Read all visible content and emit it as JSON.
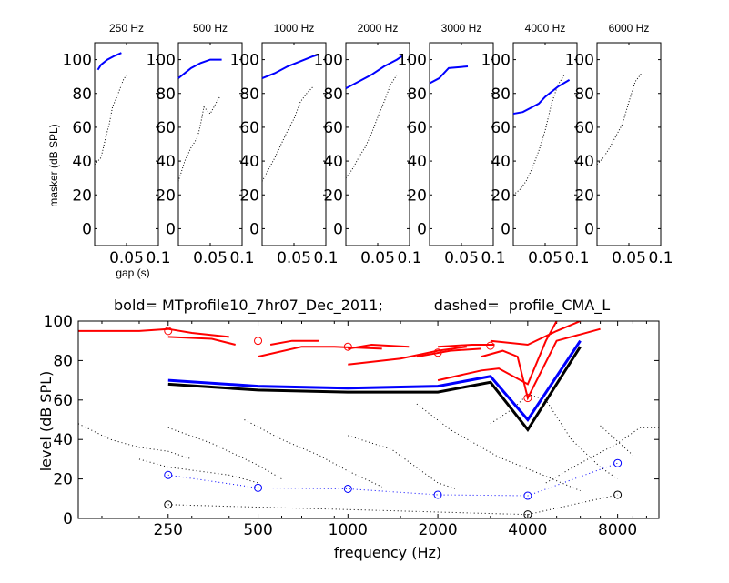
{
  "chart_data": [
    {
      "type": "line",
      "panels": [
        {
          "title": "250 Hz",
          "solid": [
            [
              0.005,
              94
            ],
            [
              0.01,
              97
            ],
            [
              0.02,
              100
            ],
            [
              0.03,
              102
            ],
            [
              0.042,
              104
            ]
          ],
          "dotted": [
            [
              0.0,
              38
            ],
            [
              0.01,
              42
            ],
            [
              0.018,
              55
            ],
            [
              0.023,
              62
            ],
            [
              0.028,
              72
            ],
            [
              0.035,
              78
            ],
            [
              0.045,
              88
            ],
            [
              0.05,
              91
            ]
          ]
        },
        {
          "title": "500 Hz",
          "solid": [
            [
              0.0,
              89
            ],
            [
              0.01,
              92
            ],
            [
              0.02,
              95
            ],
            [
              0.035,
              98
            ],
            [
              0.05,
              100
            ],
            [
              0.068,
              100
            ]
          ],
          "dotted": [
            [
              0.0,
              28
            ],
            [
              0.01,
              40
            ],
            [
              0.02,
              48
            ],
            [
              0.03,
              54
            ],
            [
              0.035,
              62
            ],
            [
              0.04,
              72
            ],
            [
              0.05,
              68
            ],
            [
              0.06,
              75
            ],
            [
              0.065,
              78
            ]
          ]
        },
        {
          "title": "1000 Hz",
          "solid": [
            [
              0.0,
              89
            ],
            [
              0.02,
              92
            ],
            [
              0.04,
              96
            ],
            [
              0.06,
              99
            ],
            [
              0.08,
              102
            ],
            [
              0.088,
              103
            ]
          ],
          "dotted": [
            [
              0.0,
              28
            ],
            [
              0.01,
              35
            ],
            [
              0.02,
              42
            ],
            [
              0.03,
              50
            ],
            [
              0.04,
              58
            ],
            [
              0.05,
              65
            ],
            [
              0.06,
              75
            ],
            [
              0.07,
              80
            ],
            [
              0.08,
              84
            ]
          ]
        },
        {
          "title": "2000 Hz",
          "solid": [
            [
              0.0,
              83
            ],
            [
              0.02,
              87
            ],
            [
              0.04,
              91
            ],
            [
              0.06,
              96
            ],
            [
              0.08,
              100
            ],
            [
              0.088,
              102
            ]
          ],
          "dotted": [
            [
              0.0,
              30
            ],
            [
              0.01,
              35
            ],
            [
              0.02,
              42
            ],
            [
              0.03,
              48
            ],
            [
              0.04,
              56
            ],
            [
              0.05,
              66
            ],
            [
              0.06,
              75
            ],
            [
              0.07,
              85
            ],
            [
              0.08,
              91
            ]
          ]
        },
        {
          "title": "3000 Hz",
          "solid": [
            [
              0.0,
              86
            ],
            [
              0.015,
              89
            ],
            [
              0.03,
              95
            ],
            [
              0.06,
              96
            ]
          ],
          "dotted": []
        },
        {
          "title": "4000 Hz",
          "solid": [
            [
              0.0,
              68
            ],
            [
              0.015,
              69
            ],
            [
              0.03,
              72
            ],
            [
              0.04,
              74
            ],
            [
              0.05,
              78
            ],
            [
              0.07,
              84
            ],
            [
              0.088,
              88
            ]
          ],
          "dotted": [
            [
              0.0,
              20
            ],
            [
              0.01,
              23
            ],
            [
              0.02,
              28
            ],
            [
              0.03,
              36
            ],
            [
              0.04,
              46
            ],
            [
              0.05,
              58
            ],
            [
              0.06,
              74
            ],
            [
              0.07,
              85
            ],
            [
              0.08,
              91
            ]
          ]
        },
        {
          "title": "6000 Hz",
          "solid": [],
          "dotted": [
            [
              0.0,
              38
            ],
            [
              0.01,
              42
            ],
            [
              0.02,
              48
            ],
            [
              0.03,
              55
            ],
            [
              0.04,
              62
            ],
            [
              0.05,
              75
            ],
            [
              0.06,
              87
            ],
            [
              0.07,
              92
            ]
          ]
        }
      ],
      "xlabel": "gap (s)",
      "ylabel": "masker (dB SPL)",
      "xlim": [
        0,
        0.1
      ],
      "ylim": [
        -10,
        110
      ],
      "xticks": [
        "0.05",
        "0.1"
      ],
      "yticks": [
        "0",
        "20",
        "40",
        "60",
        "80",
        "100"
      ]
    },
    {
      "type": "line",
      "title": "bold= MTprofile10_7hr07_Dec_2011;           dashed=  profile_CMA_L",
      "xlabel": "frequency (Hz)",
      "ylabel": "level (dB SPL)",
      "xscale": "log",
      "xlim": [
        125,
        11000
      ],
      "ylim": [
        0,
        100
      ],
      "xticks": [
        "250",
        "500",
        "1000",
        "2000",
        "4000",
        "8000"
      ],
      "yticks": [
        "0",
        "20",
        "40",
        "60",
        "80",
        "100"
      ],
      "series": [
        {
          "style": "bold-blue",
          "color": "#0000ff",
          "points": [
            [
              250,
              70
            ],
            [
              500,
              67
            ],
            [
              1000,
              66
            ],
            [
              2000,
              67
            ],
            [
              3000,
              72
            ],
            [
              4000,
              50
            ],
            [
              6000,
              90
            ]
          ]
        },
        {
          "style": "bold-black",
          "color": "#000000",
          "points": [
            [
              250,
              68
            ],
            [
              500,
              65
            ],
            [
              1000,
              64
            ],
            [
              2000,
              64
            ],
            [
              3000,
              69
            ],
            [
              4000,
              45
            ],
            [
              6000,
              87
            ]
          ]
        },
        {
          "style": "blue-dotted-circles",
          "color": "#0000ff",
          "points": [
            [
              250,
              22
            ],
            [
              500,
              15.5
            ],
            [
              1000,
              15
            ],
            [
              2000,
              12
            ],
            [
              4000,
              11.5
            ],
            [
              8000,
              28
            ]
          ]
        },
        {
          "style": "black-dotted-circles",
          "color": "#000000",
          "points": [
            [
              250,
              7
            ],
            [
              4000,
              2
            ],
            [
              8000,
              12
            ]
          ]
        },
        {
          "style": "red-circles",
          "color": "#ff0000",
          "points": [
            [
              250,
              95
            ],
            [
              500,
              90
            ],
            [
              1000,
              87
            ],
            [
              2000,
              84
            ],
            [
              3000,
              87.5
            ],
            [
              4000,
              61
            ]
          ]
        }
      ],
      "red_segments": [
        [
          [
            100,
            95
          ],
          [
            200,
            95
          ],
          [
            250,
            96
          ],
          [
            300,
            94
          ],
          [
            400,
            92
          ]
        ],
        [
          [
            250,
            92
          ],
          [
            350,
            91
          ],
          [
            420,
            88
          ]
        ],
        [
          [
            500,
            82
          ],
          [
            700,
            87
          ],
          [
            900,
            87
          ],
          [
            1300,
            86
          ]
        ],
        [
          [
            550,
            88
          ],
          [
            650,
            90
          ],
          [
            800,
            90
          ]
        ],
        [
          [
            1000,
            86
          ],
          [
            1200,
            88
          ],
          [
            1600,
            87
          ]
        ],
        [
          [
            1000,
            78
          ],
          [
            1500,
            81
          ],
          [
            2000,
            85
          ],
          [
            2500,
            87
          ]
        ],
        [
          [
            2000,
            87
          ],
          [
            2600,
            88
          ],
          [
            3100,
            88
          ]
        ],
        [
          [
            1700,
            82
          ],
          [
            2200,
            85
          ],
          [
            2800,
            86
          ]
        ],
        [
          [
            2000,
            70
          ],
          [
            2800,
            75
          ],
          [
            3200,
            76
          ],
          [
            4000,
            68
          ],
          [
            4600,
            90
          ],
          [
            5000,
            100
          ]
        ],
        [
          [
            3000,
            90
          ],
          [
            4000,
            88
          ],
          [
            5000,
            95
          ],
          [
            6000,
            100
          ]
        ],
        [
          [
            2800,
            82
          ],
          [
            3300,
            85
          ],
          [
            3700,
            82
          ],
          [
            4000,
            61
          ],
          [
            5000,
            90
          ],
          [
            7000,
            96
          ]
        ]
      ],
      "dotted_segments": [
        [
          [
            125,
            48
          ],
          [
            160,
            40
          ],
          [
            200,
            36
          ],
          [
            250,
            34
          ],
          [
            300,
            30
          ]
        ],
        [
          [
            250,
            46
          ],
          [
            350,
            38
          ],
          [
            500,
            27
          ],
          [
            600,
            20
          ]
        ],
        [
          [
            200,
            30
          ],
          [
            250,
            26
          ],
          [
            400,
            22
          ],
          [
            500,
            18
          ]
        ],
        [
          [
            450,
            50
          ],
          [
            600,
            40
          ],
          [
            800,
            32
          ],
          [
            1000,
            24
          ],
          [
            1300,
            16
          ]
        ],
        [
          [
            1000,
            42
          ],
          [
            1400,
            35
          ],
          [
            2000,
            18
          ],
          [
            2300,
            15
          ]
        ],
        [
          [
            1700,
            58
          ],
          [
            2200,
            45
          ],
          [
            3200,
            31
          ],
          [
            4500,
            22
          ],
          [
            6000,
            14
          ]
        ],
        [
          [
            3000,
            48
          ],
          [
            3600,
            56
          ],
          [
            4000,
            63
          ],
          [
            4600,
            60
          ],
          [
            5600,
            40
          ],
          [
            7000,
            26
          ],
          [
            8000,
            20
          ]
        ],
        [
          [
            4600,
            18
          ],
          [
            6000,
            28
          ],
          [
            8000,
            38
          ],
          [
            9500,
            46
          ],
          [
            11000,
            46
          ]
        ],
        [
          [
            7000,
            47
          ],
          [
            9000,
            32
          ]
        ]
      ]
    }
  ]
}
